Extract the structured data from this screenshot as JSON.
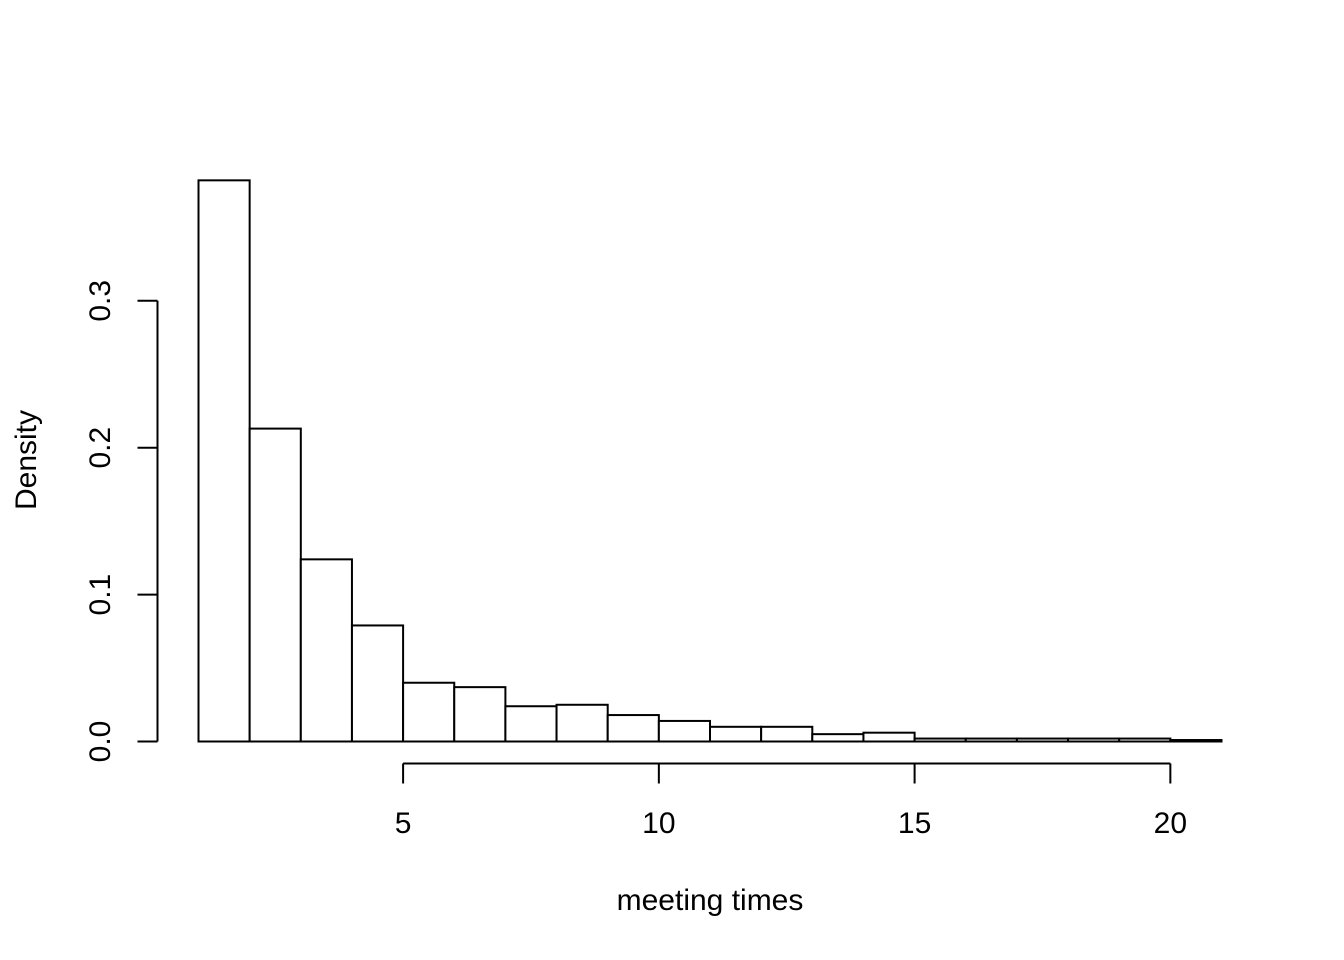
{
  "chart_data": {
    "type": "bar",
    "subtype": "histogram",
    "title": "",
    "xlabel": "meeting times",
    "ylabel": "Density",
    "bins": [
      {
        "start": 1,
        "end": 2,
        "density": 0.382
      },
      {
        "start": 2,
        "end": 3,
        "density": 0.213
      },
      {
        "start": 3,
        "end": 4,
        "density": 0.124
      },
      {
        "start": 4,
        "end": 5,
        "density": 0.079
      },
      {
        "start": 5,
        "end": 6,
        "density": 0.04
      },
      {
        "start": 6,
        "end": 7,
        "density": 0.037
      },
      {
        "start": 7,
        "end": 8,
        "density": 0.024
      },
      {
        "start": 8,
        "end": 9,
        "density": 0.025
      },
      {
        "start": 9,
        "end": 10,
        "density": 0.018
      },
      {
        "start": 10,
        "end": 11,
        "density": 0.014
      },
      {
        "start": 11,
        "end": 12,
        "density": 0.01
      },
      {
        "start": 12,
        "end": 13,
        "density": 0.01
      },
      {
        "start": 13,
        "end": 14,
        "density": 0.005
      },
      {
        "start": 14,
        "end": 15,
        "density": 0.006
      },
      {
        "start": 15,
        "end": 16,
        "density": 0.002
      },
      {
        "start": 16,
        "end": 17,
        "density": 0.002
      },
      {
        "start": 17,
        "end": 18,
        "density": 0.002
      },
      {
        "start": 18,
        "end": 19,
        "density": 0.002
      },
      {
        "start": 19,
        "end": 20,
        "density": 0.002
      },
      {
        "start": 20,
        "end": 21,
        "density": 0.001
      }
    ],
    "xlim": [
      1,
      21
    ],
    "ylim": [
      0,
      0.39
    ],
    "x_ticks": [
      5,
      10,
      15,
      20
    ],
    "x_tick_labels": [
      "5",
      "10",
      "15",
      "20"
    ],
    "y_ticks": [
      0.0,
      0.1,
      0.2,
      0.3
    ],
    "y_tick_labels": [
      "0.0",
      "0.1",
      "0.2",
      "0.3"
    ],
    "grid": false,
    "legend": "none",
    "bar_fill": "#ffffff",
    "bar_stroke": "#000000"
  }
}
